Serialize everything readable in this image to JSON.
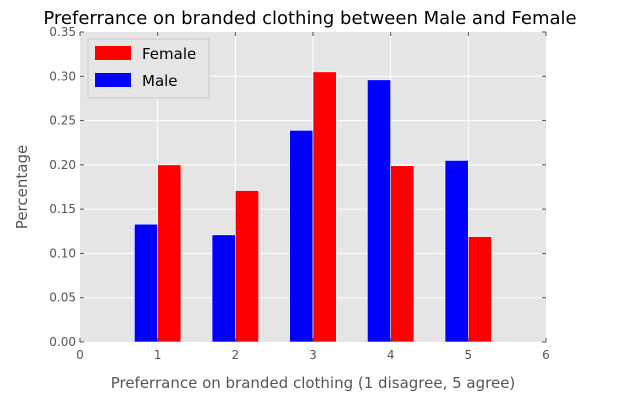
{
  "chart_data": {
    "type": "bar",
    "title": "Preferrance on branded clothing between Male and Female",
    "xlabel": "Preferrance on branded clothing (1 disagree, 5 agree)",
    "ylabel": "Percentage",
    "xlim": [
      0,
      6
    ],
    "ylim": [
      0,
      0.35
    ],
    "xticks": [
      "0",
      "1",
      "2",
      "3",
      "4",
      "5",
      "6"
    ],
    "yticks": [
      "0.00",
      "0.05",
      "0.10",
      "0.15",
      "0.20",
      "0.25",
      "0.30",
      "0.35"
    ],
    "x": [
      1,
      2,
      3,
      4,
      5
    ],
    "grid": true,
    "legend_position": "top-left",
    "series": [
      {
        "name": "Male",
        "color": "#0000ff",
        "values": [
          0.133,
          0.121,
          0.239,
          0.296,
          0.205
        ]
      },
      {
        "name": "Female",
        "color": "#ff0000",
        "values": [
          0.2,
          0.171,
          0.305,
          0.199,
          0.119
        ]
      }
    ],
    "legend_order": [
      "Female",
      "Male"
    ],
    "background": "#e5e5e5"
  }
}
